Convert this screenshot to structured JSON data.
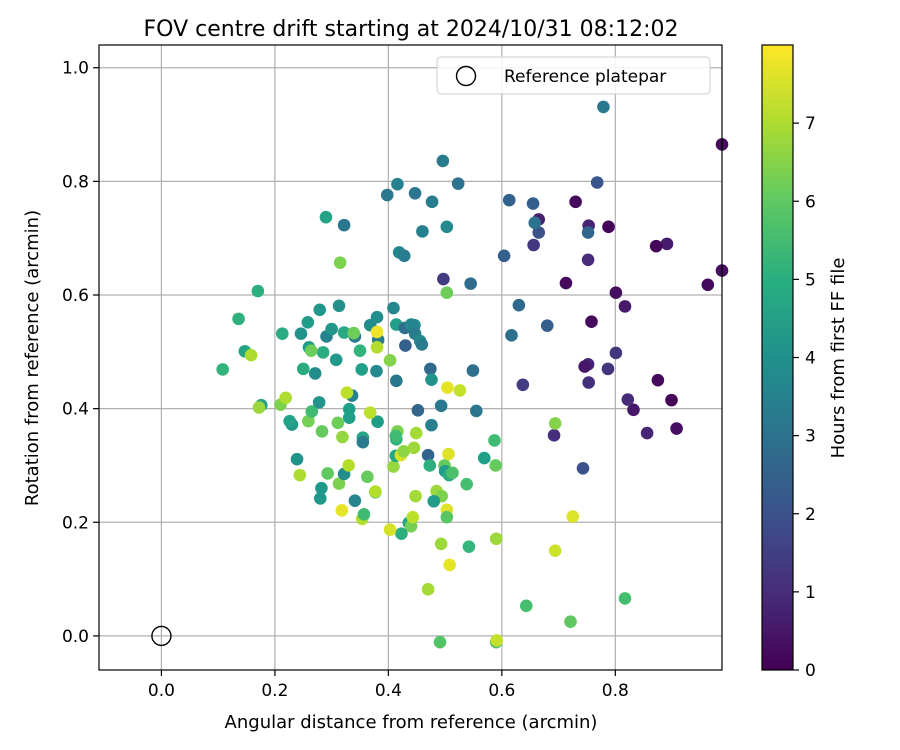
{
  "chart_data": {
    "type": "scatter",
    "title": "FOV centre drift starting at 2024/10/31 08:12:02",
    "xlabel": "Angular distance from reference (arcmin)",
    "ylabel": "Rotation from reference (arcmin)",
    "xlim": [
      -0.11,
      0.988
    ],
    "ylim": [
      -0.06,
      1.04
    ],
    "x_ticks": [
      0.0,
      0.2,
      0.4,
      0.6,
      0.8
    ],
    "x_tick_labels": [
      "0.0",
      "0.2",
      "0.4",
      "0.6",
      "0.8"
    ],
    "y_ticks": [
      0.0,
      0.2,
      0.4,
      0.6,
      0.8,
      1.0
    ],
    "y_tick_labels": [
      "0.0",
      "0.2",
      "0.4",
      "0.6",
      "0.8",
      "1.0"
    ],
    "grid": true,
    "legend": {
      "placement": "top-right",
      "entries": [
        {
          "label": "Reference platepar",
          "marker": "open-circle"
        }
      ]
    },
    "reference_point": {
      "x": 0.0,
      "y": 0.0
    },
    "colorbar": {
      "label": "Hours from first FF file",
      "colormap": "viridis",
      "range": [
        0,
        8.0
      ],
      "ticks": [
        0,
        1,
        2,
        3,
        4,
        5,
        6,
        7
      ],
      "tick_labels": [
        "0",
        "1",
        "2",
        "3",
        "4",
        "5",
        "6",
        "7"
      ]
    },
    "series": [
      {
        "points": [
          [
            0.988,
            0.865,
            0.2
          ],
          [
            0.988,
            0.643,
            0.3
          ],
          [
            0.963,
            0.618,
            0.2
          ],
          [
            0.908,
            0.365,
            0.3
          ],
          [
            0.899,
            0.415,
            0.1
          ],
          [
            0.891,
            0.69,
            0.6
          ],
          [
            0.875,
            0.45,
            0.2
          ],
          [
            0.872,
            0.686,
            0.1
          ],
          [
            0.856,
            0.357,
            0.8
          ],
          [
            0.832,
            0.398,
            0.5
          ],
          [
            0.822,
            0.416,
            1.0
          ],
          [
            0.817,
            0.58,
            0.6
          ],
          [
            0.801,
            0.604,
            0.3
          ],
          [
            0.801,
            0.498,
            1.3
          ],
          [
            0.788,
            0.72,
            0.1
          ],
          [
            0.787,
            0.47,
            1.2
          ],
          [
            0.768,
            0.798,
            2.1
          ],
          [
            0.758,
            0.553,
            0.2
          ],
          [
            0.753,
            0.722,
            0.8
          ],
          [
            0.752,
            0.71,
            2.6
          ],
          [
            0.752,
            0.662,
            1.0
          ],
          [
            0.752,
            0.478,
            0.8
          ],
          [
            0.753,
            0.446,
            1.1
          ],
          [
            0.746,
            0.474,
            0.5
          ],
          [
            0.743,
            0.295,
            2.0
          ],
          [
            0.73,
            0.764,
            0.2
          ],
          [
            0.713,
            0.621,
            0.2
          ],
          [
            0.692,
            0.353,
            1.1
          ],
          [
            0.665,
            0.733,
            0.7
          ],
          [
            0.665,
            0.71,
            2.0
          ],
          [
            0.658,
            0.727,
            3.0
          ],
          [
            0.656,
            0.688,
            1.3
          ],
          [
            0.655,
            0.761,
            2.4
          ],
          [
            0.637,
            0.442,
            1.4
          ],
          [
            0.63,
            0.582,
            2.7
          ],
          [
            0.613,
            0.767,
            2.5
          ],
          [
            0.617,
            0.529,
            2.9
          ],
          [
            0.604,
            0.669,
            2.4
          ],
          [
            0.779,
            0.931,
            3.2
          ],
          [
            0.68,
            0.546,
            2.4
          ],
          [
            0.496,
            0.836,
            3.3
          ],
          [
            0.523,
            0.796,
            3.0
          ],
          [
            0.416,
            0.795,
            3.5
          ],
          [
            0.398,
            0.776,
            3.2
          ],
          [
            0.447,
            0.779,
            3.1
          ],
          [
            0.477,
            0.764,
            3.4
          ],
          [
            0.503,
            0.72,
            3.8
          ],
          [
            0.46,
            0.712,
            3.5
          ],
          [
            0.322,
            0.723,
            3.2
          ],
          [
            0.29,
            0.737,
            4.6
          ],
          [
            0.419,
            0.675,
            3.7
          ],
          [
            0.428,
            0.669,
            3.3
          ],
          [
            0.497,
            0.628,
            1.4
          ],
          [
            0.545,
            0.62,
            2.8
          ],
          [
            0.503,
            0.604,
            6.2
          ],
          [
            0.315,
            0.657,
            6.4
          ],
          [
            0.17,
            0.607,
            5.0
          ],
          [
            0.409,
            0.577,
            3.7
          ],
          [
            0.38,
            0.561,
            3.9
          ],
          [
            0.368,
            0.547,
            3.9
          ],
          [
            0.414,
            0.548,
            4.5
          ],
          [
            0.429,
            0.542,
            2.9
          ],
          [
            0.44,
            0.548,
            3.8
          ],
          [
            0.446,
            0.547,
            3.7
          ],
          [
            0.447,
            0.532,
            3.3
          ],
          [
            0.43,
            0.511,
            2.4
          ],
          [
            0.456,
            0.519,
            3.8
          ],
          [
            0.459,
            0.513,
            3.3
          ],
          [
            0.341,
            0.527,
            3.3
          ],
          [
            0.313,
            0.581,
            4.0
          ],
          [
            0.279,
            0.574,
            4.2
          ],
          [
            0.291,
            0.527,
            3.6
          ],
          [
            0.3,
            0.54,
            4.2
          ],
          [
            0.322,
            0.534,
            4.8
          ],
          [
            0.339,
            0.533,
            6.2
          ],
          [
            0.382,
            0.521,
            3.3
          ],
          [
            0.38,
            0.535,
            7.8
          ],
          [
            0.38,
            0.508,
            7.1
          ],
          [
            0.35,
            0.502,
            5.2
          ],
          [
            0.308,
            0.486,
            4.3
          ],
          [
            0.285,
            0.499,
            4.9
          ],
          [
            0.26,
            0.508,
            4.4
          ],
          [
            0.264,
            0.502,
            6.2
          ],
          [
            0.258,
            0.552,
            4.4
          ],
          [
            0.246,
            0.532,
            4.1
          ],
          [
            0.213,
            0.532,
            4.9
          ],
          [
            0.136,
            0.558,
            5.1
          ],
          [
            0.147,
            0.501,
            4.7
          ],
          [
            0.158,
            0.494,
            7.0
          ],
          [
            0.108,
            0.469,
            5.2
          ],
          [
            0.25,
            0.47,
            4.9
          ],
          [
            0.271,
            0.462,
            3.9
          ],
          [
            0.353,
            0.469,
            4.5
          ],
          [
            0.379,
            0.466,
            3.8
          ],
          [
            0.403,
            0.485,
            6.5
          ],
          [
            0.414,
            0.449,
            3.2
          ],
          [
            0.474,
            0.47,
            2.7
          ],
          [
            0.476,
            0.451,
            4.1
          ],
          [
            0.549,
            0.467,
            2.9
          ],
          [
            0.504,
            0.437,
            7.7
          ],
          [
            0.526,
            0.432,
            7.3
          ],
          [
            0.555,
            0.396,
            3.1
          ],
          [
            0.493,
            0.405,
            3.2
          ],
          [
            0.452,
            0.397,
            2.6
          ],
          [
            0.476,
            0.371,
            3.5
          ],
          [
            0.47,
            0.318,
            2.5
          ],
          [
            0.473,
            0.3,
            5.0
          ],
          [
            0.499,
            0.3,
            6.1
          ],
          [
            0.5,
            0.29,
            4.4
          ],
          [
            0.507,
            0.283,
            4.9
          ],
          [
            0.513,
            0.287,
            5.7
          ],
          [
            0.506,
            0.32,
            7.6
          ],
          [
            0.538,
            0.267,
            5.6
          ],
          [
            0.569,
            0.313,
            4.5
          ],
          [
            0.587,
            0.344,
            5.5
          ],
          [
            0.589,
            0.3,
            6.1
          ],
          [
            0.542,
            0.157,
            5.3
          ],
          [
            0.59,
            0.171,
            6.8
          ],
          [
            0.694,
            0.374,
            6.5
          ],
          [
            0.694,
            0.15,
            7.4
          ],
          [
            0.725,
            0.21,
            7.6
          ],
          [
            0.643,
            0.053,
            5.6
          ],
          [
            0.721,
            0.025,
            6.0
          ],
          [
            0.817,
            0.066,
            5.6
          ],
          [
            0.491,
            -0.011,
            5.8
          ],
          [
            0.59,
            -0.011,
            5.7
          ],
          [
            0.591,
            -0.008,
            7.3
          ],
          [
            0.47,
            0.082,
            6.9
          ],
          [
            0.508,
            0.125,
            7.7
          ],
          [
            0.493,
            0.162,
            6.8
          ],
          [
            0.503,
            0.222,
            7.6
          ],
          [
            0.503,
            0.209,
            5.9
          ],
          [
            0.485,
            0.255,
            6.8
          ],
          [
            0.494,
            0.246,
            6.4
          ],
          [
            0.48,
            0.237,
            4.4
          ],
          [
            0.448,
            0.246,
            6.9
          ],
          [
            0.436,
            0.199,
            4.6
          ],
          [
            0.44,
            0.193,
            6.3
          ],
          [
            0.443,
            0.209,
            7.2
          ],
          [
            0.423,
            0.18,
            5.0
          ],
          [
            0.403,
            0.187,
            7.5
          ],
          [
            0.354,
            0.206,
            7.1
          ],
          [
            0.357,
            0.214,
            5.5
          ],
          [
            0.341,
            0.238,
            3.7
          ],
          [
            0.377,
            0.253,
            5.2
          ],
          [
            0.377,
            0.254,
            7.1
          ],
          [
            0.363,
            0.28,
            6.1
          ],
          [
            0.409,
            0.298,
            6.7
          ],
          [
            0.413,
            0.317,
            4.7
          ],
          [
            0.422,
            0.318,
            7.5
          ],
          [
            0.427,
            0.325,
            6.6
          ],
          [
            0.445,
            0.331,
            6.8
          ],
          [
            0.449,
            0.357,
            6.9
          ],
          [
            0.414,
            0.346,
            5.2
          ],
          [
            0.416,
            0.36,
            6.4
          ],
          [
            0.413,
            0.352,
            5.5
          ],
          [
            0.381,
            0.377,
            4.4
          ],
          [
            0.368,
            0.393,
            7.2
          ],
          [
            0.331,
            0.384,
            4.5
          ],
          [
            0.331,
            0.399,
            4.5
          ],
          [
            0.336,
            0.423,
            3.5
          ],
          [
            0.327,
            0.428,
            7.2
          ],
          [
            0.355,
            0.349,
            4.7
          ],
          [
            0.355,
            0.341,
            3.3
          ],
          [
            0.319,
            0.35,
            6.7
          ],
          [
            0.311,
            0.375,
            6.2
          ],
          [
            0.283,
            0.36,
            6.1
          ],
          [
            0.259,
            0.378,
            6.3
          ],
          [
            0.265,
            0.395,
            5.5
          ],
          [
            0.278,
            0.411,
            4.1
          ],
          [
            0.23,
            0.372,
            4.3
          ],
          [
            0.226,
            0.378,
            4.6
          ],
          [
            0.21,
            0.407,
            6.4
          ],
          [
            0.219,
            0.419,
            7.0
          ],
          [
            0.176,
            0.406,
            4.6
          ],
          [
            0.172,
            0.402,
            6.8
          ],
          [
            0.239,
            0.311,
            4.1
          ],
          [
            0.244,
            0.283,
            7.0
          ],
          [
            0.293,
            0.286,
            6.0
          ],
          [
            0.282,
            0.26,
            4.3
          ],
          [
            0.28,
            0.242,
            4.2
          ],
          [
            0.313,
            0.268,
            6.4
          ],
          [
            0.322,
            0.285,
            3.9
          ],
          [
            0.33,
            0.3,
            7.1
          ],
          [
            0.318,
            0.221,
            7.7
          ]
        ]
      }
    ]
  }
}
